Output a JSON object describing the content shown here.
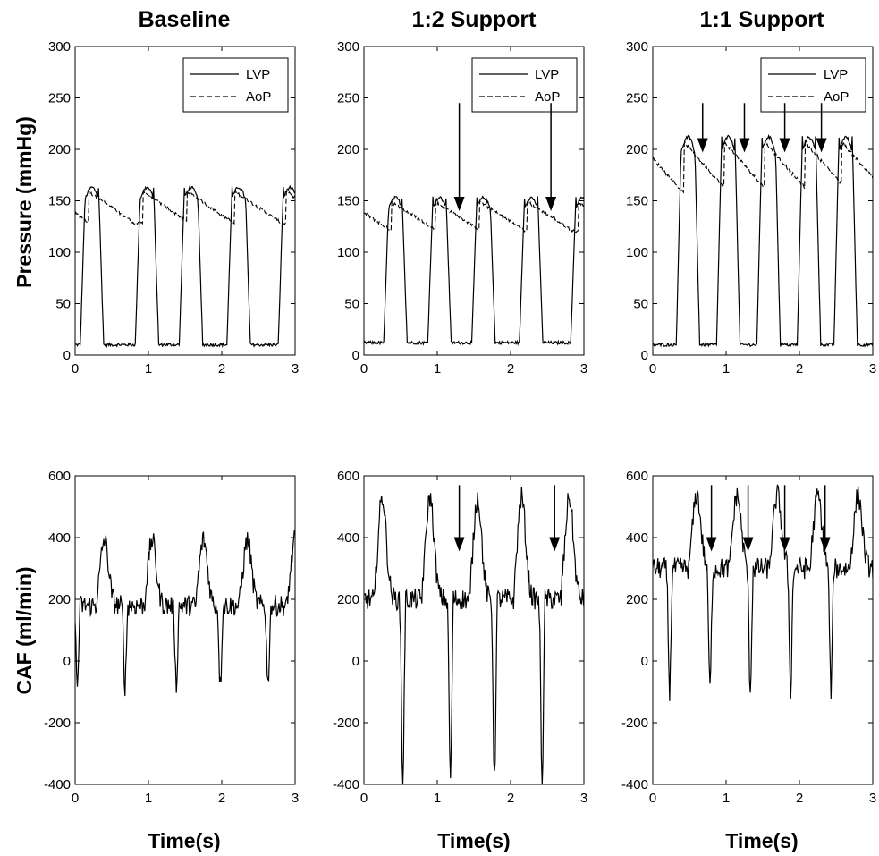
{
  "chart_data": [
    {
      "type": "line",
      "title": "Baseline",
      "xlabel": "",
      "ylabel": "Pressure (mmHg)",
      "xlim": [
        0,
        3
      ],
      "ylim": [
        0,
        300
      ],
      "xticks": [
        0,
        1,
        2,
        3
      ],
      "yticks": [
        0,
        50,
        100,
        150,
        200,
        250,
        300
      ],
      "legend": [
        "LVP",
        "AoP"
      ],
      "legend_position": "top-right",
      "beat_times": [
        0.2,
        0.95,
        1.55,
        2.2,
        2.9
      ],
      "series": [
        {
          "name": "LVP",
          "style": "solid",
          "peak": 163,
          "trough": 10
        },
        {
          "name": "AoP",
          "style": "dashed",
          "max": 158,
          "min": 128
        }
      ],
      "arrows": []
    },
    {
      "type": "line",
      "title": "1:2 Support",
      "xlabel": "",
      "ylabel": "",
      "xlim": [
        0,
        3
      ],
      "ylim": [
        0,
        300
      ],
      "xticks": [
        0,
        1,
        2,
        3
      ],
      "yticks": [
        0,
        50,
        100,
        150,
        200,
        250,
        300
      ],
      "legend": [
        "LVP",
        "AoP"
      ],
      "legend_position": "top-right",
      "beat_times": [
        0.4,
        1.0,
        1.6,
        2.25,
        2.95
      ],
      "series": [
        {
          "name": "LVP",
          "style": "solid",
          "peak": 153,
          "trough": 12
        },
        {
          "name": "AoP",
          "style": "dashed",
          "max": 148,
          "min": 120
        }
      ],
      "arrows": [
        1.3,
        2.55
      ]
    },
    {
      "type": "line",
      "title": "1:1 Support",
      "xlabel": "",
      "ylabel": "",
      "xlim": [
        0,
        3
      ],
      "ylim": [
        0,
        300
      ],
      "xticks": [
        0,
        1,
        2,
        3
      ],
      "yticks": [
        0,
        50,
        100,
        150,
        200,
        250,
        300
      ],
      "legend": [
        "LVP",
        "AoP"
      ],
      "legend_position": "top-right",
      "beat_times": [
        0.45,
        1.0,
        1.55,
        2.1,
        2.6
      ],
      "series": [
        {
          "name": "LVP",
          "style": "solid",
          "peak": 212,
          "trough": 10
        },
        {
          "name": "AoP",
          "style": "dashed",
          "max": 205,
          "min": 155
        }
      ],
      "arrows": [
        0.68,
        1.25,
        1.8,
        2.3
      ]
    },
    {
      "type": "line",
      "title": "",
      "xlabel": "Time(s)",
      "ylabel": "CAF (ml/min)",
      "xlim": [
        0,
        3
      ],
      "ylim": [
        -400,
        600
      ],
      "xticks": [
        0,
        1,
        2,
        3
      ],
      "yticks": [
        -400,
        -200,
        0,
        200,
        400,
        600
      ],
      "beat_times": [
        0.35,
        1.0,
        1.7,
        2.3,
        2.95
      ],
      "series": [
        {
          "name": "CAF",
          "style": "solid",
          "peak": 430,
          "min": -80,
          "baseline": 180
        }
      ],
      "arrows": []
    },
    {
      "type": "line",
      "title": "",
      "xlabel": "Time(s)",
      "ylabel": "",
      "xlim": [
        0,
        3
      ],
      "ylim": [
        -400,
        600
      ],
      "xticks": [
        0,
        1,
        2,
        3
      ],
      "yticks": [
        -400,
        -200,
        0,
        200,
        400,
        600
      ],
      "beat_times": [
        0.2,
        0.85,
        1.5,
        2.1,
        2.75
      ],
      "series": [
        {
          "name": "CAF",
          "style": "solid",
          "peak": 590,
          "min": -390,
          "baseline": 200
        }
      ],
      "arrows": [
        1.3,
        2.6
      ]
    },
    {
      "type": "line",
      "title": "",
      "xlabel": "Time(s)",
      "ylabel": "",
      "xlim": [
        0,
        3
      ],
      "ylim": [
        -400,
        600
      ],
      "xticks": [
        0,
        1,
        2,
        3
      ],
      "yticks": [
        -400,
        -200,
        0,
        200,
        400,
        600
      ],
      "beat_times": [
        0.55,
        1.1,
        1.65,
        2.2,
        2.75
      ],
      "series": [
        {
          "name": "CAF",
          "style": "solid",
          "peak": 580,
          "min": -95,
          "baseline": 300
        }
      ],
      "arrows": [
        0.8,
        1.3,
        1.8,
        2.35
      ]
    }
  ],
  "columns": [
    "Baseline",
    "1:2 Support",
    "1:1 Support"
  ],
  "row_labels": [
    "Pressure (mmHg)",
    "CAF (ml/min)"
  ],
  "x_axis_label": "Time(s)"
}
